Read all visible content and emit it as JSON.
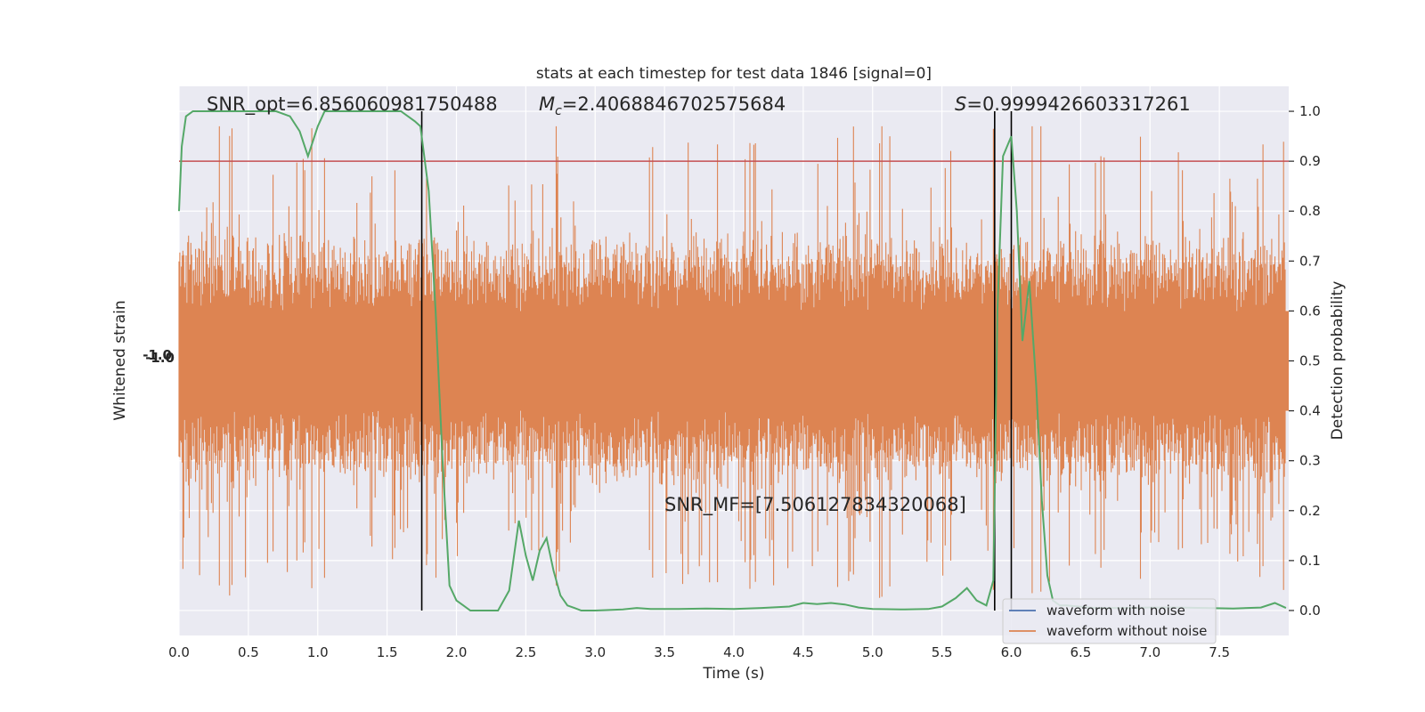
{
  "chart_data": {
    "type": "line",
    "title": "stats at each timestep for test data 1846 [signal=0]",
    "xlabel": "Time (s)",
    "ylabel_left": "Whitened strain",
    "ylabel_right": "Detection probability",
    "xlim": [
      0.0,
      8.0
    ],
    "ylim_right": [
      -0.05,
      1.05
    ],
    "x_ticks": [
      "0.0",
      "0.5",
      "1.0",
      "1.5",
      "2.0",
      "2.5",
      "3.0",
      "3.5",
      "4.0",
      "4.5",
      "5.0",
      "5.5",
      "6.0",
      "6.5",
      "7.0",
      "7.5"
    ],
    "y_ticks_right": [
      "0.0",
      "0.1",
      "0.2",
      "0.3",
      "0.4",
      "0.5",
      "0.6",
      "0.7",
      "0.8",
      "0.9",
      "1.0"
    ],
    "grid": true,
    "legend_position": "lower-right",
    "colors": {
      "waveform_with_noise": "#4c72b0",
      "waveform_without_noise": "#dd8452",
      "detection_probability": "#55a868",
      "threshold": "#c44e52",
      "markers": "#000000",
      "plot_bg": "#eaeaf2"
    },
    "threshold": 0.9,
    "vertical_lines_s": [
      1.75,
      5.88,
      6.0
    ],
    "annotations": {
      "snr_opt": "SNR_opt=6.856060981750488",
      "mc_symbol": "M",
      "mc_subscript": "c",
      "mc_value": "=2.4068846702575684",
      "s_symbol": "S",
      "s_value": "=0.9999426603317261",
      "snr_mf": "SNR_MF=[7.506127834320068]"
    },
    "legend": [
      {
        "label": "waveform with noise",
        "color": "#4c72b0"
      },
      {
        "label": "waveform without noise",
        "color": "#dd8452"
      }
    ],
    "series": [
      {
        "name": "detection probability",
        "x": [
          0.0,
          0.02,
          0.05,
          0.1,
          0.2,
          0.3,
          0.4,
          0.5,
          0.6,
          0.7,
          0.8,
          0.87,
          0.93,
          1.0,
          1.05,
          1.12,
          1.2,
          1.3,
          1.4,
          1.5,
          1.6,
          1.7,
          1.74,
          1.8,
          1.85,
          1.9,
          1.95,
          2.0,
          2.05,
          2.1,
          2.2,
          2.3,
          2.38,
          2.45,
          2.5,
          2.55,
          2.6,
          2.65,
          2.7,
          2.75,
          2.8,
          2.85,
          2.9,
          3.0,
          3.2,
          3.3,
          3.4,
          3.6,
          3.8,
          4.0,
          4.2,
          4.4,
          4.5,
          4.6,
          4.7,
          4.8,
          4.9,
          5.0,
          5.2,
          5.4,
          5.5,
          5.6,
          5.68,
          5.75,
          5.82,
          5.87,
          5.9,
          5.94,
          6.0,
          6.04,
          6.08,
          6.13,
          6.18,
          6.22,
          6.26,
          6.3,
          6.35,
          6.4,
          6.6,
          6.8,
          7.0,
          7.2,
          7.4,
          7.6,
          7.8,
          7.9,
          7.98
        ],
        "y": [
          0.8,
          0.93,
          0.99,
          1.0,
          1.0,
          1.0,
          1.0,
          1.0,
          1.0,
          1.0,
          0.99,
          0.96,
          0.91,
          0.97,
          1.0,
          1.0,
          1.0,
          1.0,
          1.0,
          1.0,
          1.0,
          0.98,
          0.97,
          0.84,
          0.6,
          0.3,
          0.05,
          0.02,
          0.01,
          0.0,
          0.0,
          0.0,
          0.04,
          0.18,
          0.11,
          0.06,
          0.12,
          0.145,
          0.08,
          0.03,
          0.01,
          0.005,
          0.0,
          0.0,
          0.002,
          0.005,
          0.003,
          0.003,
          0.004,
          0.003,
          0.005,
          0.008,
          0.015,
          0.013,
          0.015,
          0.012,
          0.006,
          0.003,
          0.002,
          0.003,
          0.008,
          0.025,
          0.045,
          0.02,
          0.01,
          0.06,
          0.6,
          0.91,
          0.95,
          0.8,
          0.54,
          0.66,
          0.45,
          0.22,
          0.07,
          0.02,
          0.01,
          0.01,
          0.005,
          0.005,
          0.006,
          0.006,
          0.005,
          0.004,
          0.006,
          0.015,
          0.005
        ]
      },
      {
        "name": "waveform without noise",
        "note_amplitude_envelope_prob_units": [
          0.05,
          0.97
        ]
      }
    ]
  },
  "left_axis_ticks_clutter": "-1.0"
}
